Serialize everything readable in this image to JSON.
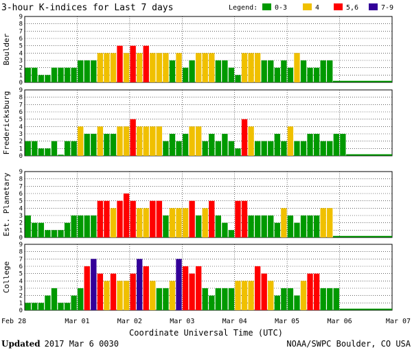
{
  "chart_data": {
    "type": "bar",
    "title": "3-hour K-indices for Last 7 days",
    "legend": {
      "label": "Legend:",
      "entries": [
        {
          "label": "0-3",
          "color": "#009900"
        },
        {
          "label": "4",
          "color": "#f0c000"
        },
        {
          "label": "5,6",
          "color": "#ff0000"
        },
        {
          "label": "7-9",
          "color": "#330099"
        }
      ]
    },
    "ylim": [
      0,
      9
    ],
    "yticks": [
      "0",
      "1",
      "2",
      "3",
      "4",
      "5",
      "6",
      "7",
      "8",
      "9"
    ],
    "xlabel": "Coordinate Universal Time (UTC)",
    "date_ticks": [
      "Feb 28",
      "Mar 01",
      "Mar 02",
      "Mar 03",
      "Mar 04",
      "Mar 05",
      "Mar 06",
      "Mar 07"
    ],
    "series": [
      {
        "name": "Boulder",
        "values": [
          2,
          2,
          1,
          1,
          2,
          2,
          2,
          2,
          3,
          3,
          3,
          4,
          4,
          4,
          5,
          4,
          5,
          4,
          5,
          4,
          4,
          4,
          3,
          4,
          2,
          3,
          4,
          4,
          4,
          3,
          3,
          2,
          1,
          4,
          4,
          4,
          3,
          3,
          2,
          3,
          2,
          4,
          3,
          2,
          2,
          3,
          3
        ]
      },
      {
        "name": "Fredericksburg",
        "values": [
          2,
          2,
          1,
          1,
          2,
          0,
          2,
          2,
          4,
          3,
          3,
          4,
          3,
          3,
          4,
          4,
          5,
          4,
          4,
          4,
          4,
          2,
          3,
          2,
          3,
          4,
          4,
          2,
          3,
          2,
          3,
          2,
          1,
          5,
          4,
          2,
          2,
          2,
          3,
          2,
          4,
          2,
          2,
          3,
          3,
          2,
          2,
          3,
          3
        ]
      },
      {
        "name": "Est. Planetary",
        "values": [
          3,
          2,
          2,
          1,
          1,
          1,
          2,
          3,
          3,
          3,
          3,
          5,
          5,
          4,
          5,
          6,
          5,
          4,
          4,
          5,
          5,
          3,
          4,
          4,
          4,
          5,
          3,
          4,
          5,
          3,
          2,
          1,
          5,
          5,
          3,
          3,
          3,
          3,
          2,
          4,
          3,
          2,
          3,
          3,
          3,
          4,
          4
        ]
      },
      {
        "name": "College",
        "values": [
          1,
          1,
          1,
          2,
          3,
          1,
          1,
          2,
          3,
          6,
          7,
          5,
          4,
          5,
          4,
          4,
          5,
          7,
          6,
          4,
          3,
          3,
          4,
          7,
          6,
          5,
          6,
          3,
          2,
          3,
          3,
          3,
          4,
          4,
          4,
          6,
          5,
          4,
          2,
          3,
          3,
          2,
          4,
          5,
          5,
          3,
          3,
          3
        ]
      }
    ]
  },
  "footer": {
    "updated_label": "Updated",
    "updated_value": "2017 Mar  6 0030",
    "source": "NOAA/SWPC Boulder, CO USA"
  }
}
